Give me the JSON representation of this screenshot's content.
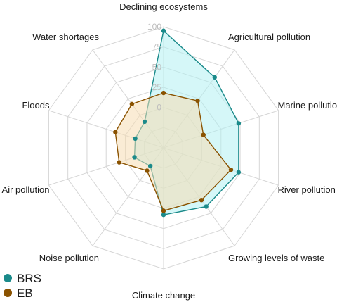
{
  "chart_data": {
    "type": "radar",
    "title": "",
    "categories": [
      "Declining ecosystems",
      "Agricultural pollution",
      "Marine pollution",
      "River pollution",
      "Growing levels of waste",
      "Climate change",
      "Noise pollution",
      "Air pollution",
      "Floods",
      "Water shortages"
    ],
    "radial_ticks": [
      "0",
      "25",
      "50",
      "75",
      "100"
    ],
    "rlim": [
      -50,
      100
    ],
    "grid": true,
    "legend_position": "bottom-left",
    "series": [
      {
        "name": "BRS",
        "color": "#1a8a8a",
        "fill": "#b3f0f3",
        "values": [
          95,
          58,
          48,
          48,
          40,
          33,
          -22,
          -12,
          -13,
          -10
        ]
      },
      {
        "name": "EB",
        "color": "#8a5200",
        "fill": "#f5dcb2",
        "values": [
          18,
          22,
          2,
          38,
          30,
          28,
          -15,
          8,
          13,
          17
        ]
      }
    ]
  }
}
